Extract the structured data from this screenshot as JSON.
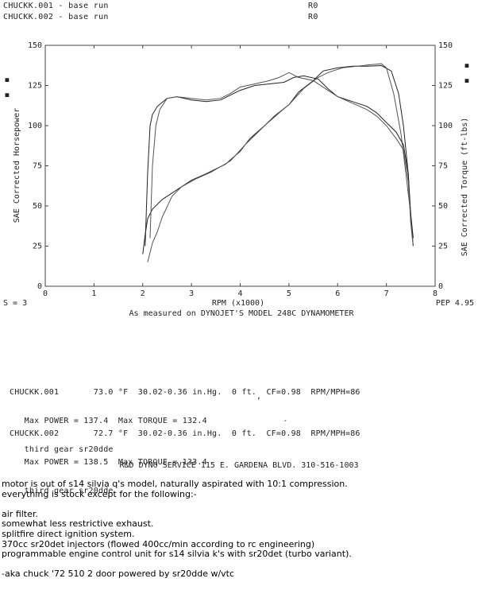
{
  "header": {
    "run1": {
      "label": "CHUCKK.001 - base run",
      "code": "R0"
    },
    "run2": {
      "label": "CHUCKK.002 - base run",
      "code": "R0"
    }
  },
  "chart_data": {
    "type": "line",
    "xlabel": "RPM (x1000)",
    "ylabel_left": "SAE Corrected Horsepower",
    "ylabel_right": "SAE Corrected Torque (ft-lbs)",
    "xlim": [
      0,
      8
    ],
    "ylim": [
      0,
      150
    ],
    "x_ticks": [
      0,
      1,
      2,
      3,
      4,
      5,
      6,
      7,
      8
    ],
    "y_ticks": [
      0,
      25,
      50,
      75,
      100,
      125,
      150
    ],
    "left_axis_marks": [
      "■",
      "■"
    ],
    "right_axis_marks": [
      "■",
      "■"
    ],
    "smoothing": "S = 3",
    "pep": "PEP 4.95",
    "footnote": "As measured on DYNOJET'S MODEL 248C DYNAMOMETER",
    "grid": false,
    "series": [
      {
        "name": "CHUCKK.001 power",
        "points": [
          [
            2.0,
            20
          ],
          [
            2.05,
            32
          ],
          [
            2.1,
            42
          ],
          [
            2.2,
            48
          ],
          [
            2.4,
            54
          ],
          [
            2.7,
            60
          ],
          [
            3.0,
            66
          ],
          [
            3.3,
            70
          ],
          [
            3.7,
            76
          ],
          [
            4.0,
            84
          ],
          [
            4.2,
            92
          ],
          [
            4.5,
            100
          ],
          [
            4.8,
            108
          ],
          [
            5.0,
            113
          ],
          [
            5.2,
            121
          ],
          [
            5.5,
            128
          ],
          [
            5.7,
            134
          ],
          [
            6.0,
            136
          ],
          [
            6.3,
            137
          ],
          [
            6.6,
            137
          ],
          [
            6.9,
            137.4
          ],
          [
            7.1,
            134
          ],
          [
            7.25,
            120
          ],
          [
            7.35,
            100
          ],
          [
            7.45,
            70
          ],
          [
            7.5,
            40
          ],
          [
            7.55,
            25
          ]
        ]
      },
      {
        "name": "CHUCKK.002 power",
        "points": [
          [
            2.1,
            15
          ],
          [
            2.2,
            27
          ],
          [
            2.3,
            34
          ],
          [
            2.4,
            43
          ],
          [
            2.6,
            56
          ],
          [
            2.8,
            62
          ],
          [
            3.1,
            67
          ],
          [
            3.4,
            71
          ],
          [
            3.8,
            78
          ],
          [
            4.1,
            88
          ],
          [
            4.4,
            97
          ],
          [
            4.7,
            106
          ],
          [
            5.0,
            113
          ],
          [
            5.3,
            123
          ],
          [
            5.6,
            130
          ],
          [
            5.8,
            133
          ],
          [
            6.1,
            136
          ],
          [
            6.4,
            137
          ],
          [
            6.7,
            138
          ],
          [
            6.9,
            138.5
          ],
          [
            7.0,
            136
          ],
          [
            7.15,
            120
          ],
          [
            7.3,
            95
          ],
          [
            7.4,
            70
          ],
          [
            7.5,
            45
          ],
          [
            7.55,
            25
          ]
        ]
      },
      {
        "name": "CHUCKK.001 torque",
        "points": [
          [
            2.05,
            25
          ],
          [
            2.1,
            70
          ],
          [
            2.15,
            100
          ],
          [
            2.2,
            107
          ],
          [
            2.3,
            112
          ],
          [
            2.5,
            117
          ],
          [
            2.7,
            118
          ],
          [
            3.0,
            116
          ],
          [
            3.3,
            115
          ],
          [
            3.6,
            116
          ],
          [
            3.8,
            119
          ],
          [
            4.0,
            122
          ],
          [
            4.3,
            125
          ],
          [
            4.6,
            126
          ],
          [
            4.9,
            127
          ],
          [
            5.1,
            130
          ],
          [
            5.3,
            131
          ],
          [
            5.6,
            129
          ],
          [
            5.8,
            123
          ],
          [
            6.0,
            118
          ],
          [
            6.3,
            115
          ],
          [
            6.6,
            112
          ],
          [
            6.8,
            108
          ],
          [
            7.0,
            102
          ],
          [
            7.2,
            96
          ],
          [
            7.35,
            88
          ],
          [
            7.45,
            70
          ],
          [
            7.5,
            45
          ],
          [
            7.55,
            30
          ]
        ]
      },
      {
        "name": "CHUCKK.002 torque",
        "points": [
          [
            2.15,
            30
          ],
          [
            2.2,
            75
          ],
          [
            2.27,
            100
          ],
          [
            2.35,
            110
          ],
          [
            2.5,
            117
          ],
          [
            2.7,
            118
          ],
          [
            3.0,
            117
          ],
          [
            3.3,
            116
          ],
          [
            3.6,
            117
          ],
          [
            3.8,
            120
          ],
          [
            4.0,
            124
          ],
          [
            4.3,
            126
          ],
          [
            4.6,
            128
          ],
          [
            4.8,
            130
          ],
          [
            5.0,
            133
          ],
          [
            5.2,
            130
          ],
          [
            5.5,
            128
          ],
          [
            5.8,
            122
          ],
          [
            6.0,
            118
          ],
          [
            6.3,
            114
          ],
          [
            6.6,
            110
          ],
          [
            6.8,
            106
          ],
          [
            7.0,
            100
          ],
          [
            7.2,
            92
          ],
          [
            7.35,
            85
          ],
          [
            7.45,
            65
          ],
          [
            7.5,
            40
          ],
          [
            7.55,
            25
          ]
        ]
      }
    ]
  },
  "run_info": [
    {
      "line1": "CHUCKK.001       73.0 °F  30.02-0.36 in.Hg.  0 ft.  CF=0.98  RPM/MPH=86",
      "line2": "   Max POWER = 137.4  Max TORQUE = 132.4",
      "line3": "   third gear sr20dde"
    },
    {
      "line1": "CHUCKK.002       72.7 °F  30.02-0.36 in.Hg.  0 ft.  CF=0.98  RPM/MPH=86",
      "line2": "   Max POWER = 138.5  Max TORQUE = 133.4",
      "line3": "   third gear sr20dde"
    }
  ],
  "shop_line": "R&D DYNO SERVICE 115 E. GARDENA BLVD. 310-516-1003",
  "description": {
    "l1": "motor is out of s14 silvia q's model, naturally aspirated with 10:1 compression.",
    "l2": "everything is stock except for the following:-",
    "l3": "",
    "l4": "air filter.",
    "l5": "somewhat less restrictive exhaust.",
    "l6": "splitfire direct ignition system.",
    "l7": "370cc sr20det injectors (flowed 400cc/min according to rc engineering)",
    "l8": "programmable engine control unit for s14 silvia k's with sr20det (turbo variant).",
    "l9": "",
    "l10": "-aka chuck '72 510 2 door powered by sr20dde w/vtc"
  }
}
